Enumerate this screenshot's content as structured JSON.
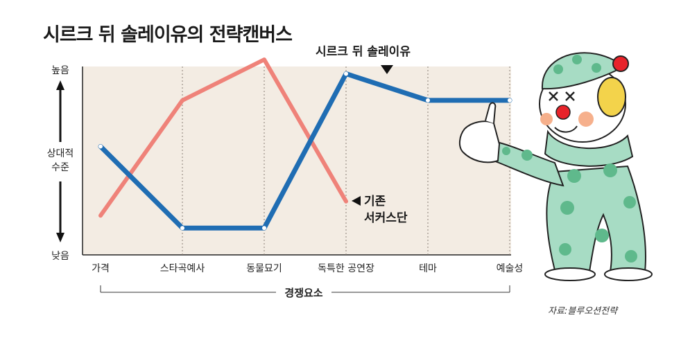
{
  "title": "시르크 뒤 솔레이유의 전략캔버스",
  "source": "자료:블루오션전략",
  "colors": {
    "background_panel": "#f3ece3",
    "cirque_line": "#1f6db3",
    "circus_line": "#ef8279",
    "axis": "#222222",
    "guide": "#8a7e74"
  },
  "chart_data": {
    "type": "line",
    "xlabel": "경쟁요소",
    "categories": [
      "가격",
      "스타곡예사",
      "동물묘기",
      "독특한 공연장",
      "테마",
      "예술성"
    ],
    "y_axis": {
      "top_label": "높음",
      "middle_label_line1": "상대적",
      "middle_label_line2": "수준",
      "bottom_label": "낮음",
      "ylim": [
        0,
        10
      ]
    },
    "grid": false,
    "series": [
      {
        "name": "기존 서커스단",
        "name_line1": "기존",
        "name_line2": "서커스단",
        "color": "#ef8279",
        "values": [
          1.2,
          7.7,
          10.0,
          2.0,
          null,
          null
        ]
      },
      {
        "name": "시르크 뒤 솔레이유",
        "color": "#1f6db3",
        "values": [
          5.1,
          0.5,
          0.5,
          9.2,
          7.7,
          7.7
        ]
      }
    ]
  },
  "illustration": "clown-illustration"
}
